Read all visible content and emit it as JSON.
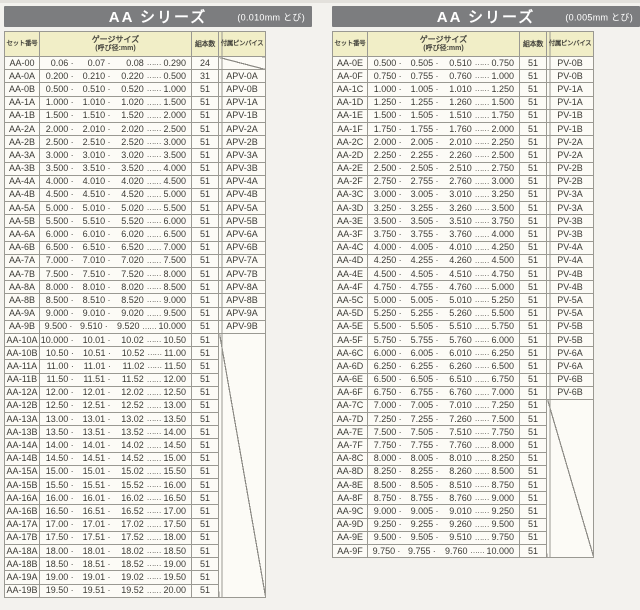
{
  "symbols": {
    "dot": "·",
    "ellipsis": "……"
  },
  "colors": {
    "titlebar_bg": "#7c7d7f",
    "header_bg": "#f1eec7",
    "table_bg": "#fcfbf6",
    "border": "#9a9992"
  },
  "panels": [
    {
      "title": "AA シリーズ",
      "subtitle": "(0.010mm とび)",
      "headers": {
        "set": "セット番号",
        "gauge1": "ゲージサイズ",
        "gauge2": "(呼び径:mm)",
        "count": "組本数",
        "vise": "付属ピンバイス"
      },
      "merge": {
        "start": 21,
        "span": 20
      },
      "rows": [
        {
          "set": "AA-00",
          "g": [
            "0.06",
            "0.07",
            "0.08",
            "0.290"
          ],
          "n": "24",
          "v": ""
        },
        {
          "set": "AA-0A",
          "g": [
            "0.200",
            "0.210",
            "0.220",
            "0.500"
          ],
          "n": "31",
          "v": "APV-0A"
        },
        {
          "set": "AA-0B",
          "g": [
            "0.500",
            "0.510",
            "0.520",
            "1.000"
          ],
          "n": "51",
          "v": "APV-0B"
        },
        {
          "set": "AA-1A",
          "g": [
            "1.000",
            "1.010",
            "1.020",
            "1.500"
          ],
          "n": "51",
          "v": "APV-1A"
        },
        {
          "set": "AA-1B",
          "g": [
            "1.500",
            "1.510",
            "1.520",
            "2.000"
          ],
          "n": "51",
          "v": "APV-1B"
        },
        {
          "set": "AA-2A",
          "g": [
            "2.000",
            "2.010",
            "2.020",
            "2.500"
          ],
          "n": "51",
          "v": "APV-2A"
        },
        {
          "set": "AA-2B",
          "g": [
            "2.500",
            "2.510",
            "2.520",
            "3.000"
          ],
          "n": "51",
          "v": "APV-2B"
        },
        {
          "set": "AA-3A",
          "g": [
            "3.000",
            "3.010",
            "3.020",
            "3.500"
          ],
          "n": "51",
          "v": "APV-3A"
        },
        {
          "set": "AA-3B",
          "g": [
            "3.500",
            "3.510",
            "3.520",
            "4.000"
          ],
          "n": "51",
          "v": "APV-3B"
        },
        {
          "set": "AA-4A",
          "g": [
            "4.000",
            "4.010",
            "4.020",
            "4.500"
          ],
          "n": "51",
          "v": "APV-4A"
        },
        {
          "set": "AA-4B",
          "g": [
            "4.500",
            "4.510",
            "4.520",
            "5.000"
          ],
          "n": "51",
          "v": "APV-4B"
        },
        {
          "set": "AA-5A",
          "g": [
            "5.000",
            "5.010",
            "5.020",
            "5.500"
          ],
          "n": "51",
          "v": "APV-5A"
        },
        {
          "set": "AA-5B",
          "g": [
            "5.500",
            "5.510",
            "5.520",
            "6.000"
          ],
          "n": "51",
          "v": "APV-5B"
        },
        {
          "set": "AA-6A",
          "g": [
            "6.000",
            "6.010",
            "6.020",
            "6.500"
          ],
          "n": "51",
          "v": "APV-6A"
        },
        {
          "set": "AA-6B",
          "g": [
            "6.500",
            "6.510",
            "6.520",
            "7.000"
          ],
          "n": "51",
          "v": "APV-6B"
        },
        {
          "set": "AA-7A",
          "g": [
            "7.000",
            "7.010",
            "7.020",
            "7.500"
          ],
          "n": "51",
          "v": "APV-7A"
        },
        {
          "set": "AA-7B",
          "g": [
            "7.500",
            "7.510",
            "7.520",
            "8.000"
          ],
          "n": "51",
          "v": "APV-7B"
        },
        {
          "set": "AA-8A",
          "g": [
            "8.000",
            "8.010",
            "8.020",
            "8.500"
          ],
          "n": "51",
          "v": "APV-8A"
        },
        {
          "set": "AA-8B",
          "g": [
            "8.500",
            "8.510",
            "8.520",
            "9.000"
          ],
          "n": "51",
          "v": "APV-8B"
        },
        {
          "set": "AA-9A",
          "g": [
            "9.000",
            "9.010",
            "9.020",
            "9.500"
          ],
          "n": "51",
          "v": "APV-9A"
        },
        {
          "set": "AA-9B",
          "g": [
            "9.500",
            "9.510",
            "9.520",
            "10.000"
          ],
          "n": "51",
          "v": "APV-9B"
        },
        {
          "set": "AA-10A",
          "g": [
            "10.000",
            "10.01",
            "10.02",
            "10.50"
          ],
          "n": "51",
          "v": null
        },
        {
          "set": "AA-10B",
          "g": [
            "10.50",
            "10.51",
            "10.52",
            "11.00"
          ],
          "n": "51",
          "v": null
        },
        {
          "set": "AA-11A",
          "g": [
            "11.00",
            "11.01",
            "11.02",
            "11.50"
          ],
          "n": "51",
          "v": null
        },
        {
          "set": "AA-11B",
          "g": [
            "11.50",
            "11.51",
            "11.52",
            "12.00"
          ],
          "n": "51",
          "v": null
        },
        {
          "set": "AA-12A",
          "g": [
            "12.00",
            "12.01",
            "12.02",
            "12.50"
          ],
          "n": "51",
          "v": null
        },
        {
          "set": "AA-12B",
          "g": [
            "12.50",
            "12.51",
            "12.52",
            "13.00"
          ],
          "n": "51",
          "v": null
        },
        {
          "set": "AA-13A",
          "g": [
            "13.00",
            "13.01",
            "13.02",
            "13.50"
          ],
          "n": "51",
          "v": null
        },
        {
          "set": "AA-13B",
          "g": [
            "13.50",
            "13.51",
            "13.52",
            "14.00"
          ],
          "n": "51",
          "v": null
        },
        {
          "set": "AA-14A",
          "g": [
            "14.00",
            "14.01",
            "14.02",
            "14.50"
          ],
          "n": "51",
          "v": null
        },
        {
          "set": "AA-14B",
          "g": [
            "14.50",
            "14.51",
            "14.52",
            "15.00"
          ],
          "n": "51",
          "v": null
        },
        {
          "set": "AA-15A",
          "g": [
            "15.00",
            "15.01",
            "15.02",
            "15.50"
          ],
          "n": "51",
          "v": null
        },
        {
          "set": "AA-15B",
          "g": [
            "15.50",
            "15.51",
            "15.52",
            "16.00"
          ],
          "n": "51",
          "v": null
        },
        {
          "set": "AA-16A",
          "g": [
            "16.00",
            "16.01",
            "16.02",
            "16.50"
          ],
          "n": "51",
          "v": null
        },
        {
          "set": "AA-16B",
          "g": [
            "16.50",
            "16.51",
            "16.52",
            "17.00"
          ],
          "n": "51",
          "v": null
        },
        {
          "set": "AA-17A",
          "g": [
            "17.00",
            "17.01",
            "17.02",
            "17.50"
          ],
          "n": "51",
          "v": null
        },
        {
          "set": "AA-17B",
          "g": [
            "17.50",
            "17.51",
            "17.52",
            "18.00"
          ],
          "n": "51",
          "v": null
        },
        {
          "set": "AA-18A",
          "g": [
            "18.00",
            "18.01",
            "18.02",
            "18.50"
          ],
          "n": "51",
          "v": null
        },
        {
          "set": "AA-18B",
          "g": [
            "18.50",
            "18.51",
            "18.52",
            "19.00"
          ],
          "n": "51",
          "v": null
        },
        {
          "set": "AA-19A",
          "g": [
            "19.00",
            "19.01",
            "19.02",
            "19.50"
          ],
          "n": "51",
          "v": null
        },
        {
          "set": "AA-19B",
          "g": [
            "19.50",
            "19.51",
            "19.52",
            "20.00"
          ],
          "n": "51",
          "v": null
        }
      ]
    },
    {
      "title": "AA シリーズ",
      "subtitle": "(0.005mm とび)",
      "headers": {
        "set": "セット番号",
        "gauge1": "ゲージサイズ",
        "gauge2": "(呼び径:mm)",
        "count": "組本数",
        "vise": "付属ピンバイス"
      },
      "merge": {
        "start": 26,
        "span": 12
      },
      "rows": [
        {
          "set": "AA-0E",
          "g": [
            "0.500",
            "0.505",
            "0.510",
            "0.750"
          ],
          "n": "51",
          "v": "PV-0B"
        },
        {
          "set": "AA-0F",
          "g": [
            "0.750",
            "0.755",
            "0.760",
            "1.000"
          ],
          "n": "51",
          "v": "PV-0B"
        },
        {
          "set": "AA-1C",
          "g": [
            "1.000",
            "1.005",
            "1.010",
            "1.250"
          ],
          "n": "51",
          "v": "PV-1A"
        },
        {
          "set": "AA-1D",
          "g": [
            "1.250",
            "1.255",
            "1.260",
            "1.500"
          ],
          "n": "51",
          "v": "PV-1A"
        },
        {
          "set": "AA-1E",
          "g": [
            "1.500",
            "1.505",
            "1.510",
            "1.750"
          ],
          "n": "51",
          "v": "PV-1B"
        },
        {
          "set": "AA-1F",
          "g": [
            "1.750",
            "1.755",
            "1.760",
            "2.000"
          ],
          "n": "51",
          "v": "PV-1B"
        },
        {
          "set": "AA-2C",
          "g": [
            "2.000",
            "2.005",
            "2.010",
            "2.250"
          ],
          "n": "51",
          "v": "PV-2A"
        },
        {
          "set": "AA-2D",
          "g": [
            "2.250",
            "2.255",
            "2.260",
            "2.500"
          ],
          "n": "51",
          "v": "PV-2A"
        },
        {
          "set": "AA-2E",
          "g": [
            "2.500",
            "2.505",
            "2.510",
            "2.750"
          ],
          "n": "51",
          "v": "PV-2B"
        },
        {
          "set": "AA-2F",
          "g": [
            "2.750",
            "2.755",
            "2.760",
            "3.000"
          ],
          "n": "51",
          "v": "PV-2B"
        },
        {
          "set": "AA-3C",
          "g": [
            "3.000",
            "3.005",
            "3.010",
            "3.250"
          ],
          "n": "51",
          "v": "PV-3A"
        },
        {
          "set": "AA-3D",
          "g": [
            "3.250",
            "3.255",
            "3.260",
            "3.500"
          ],
          "n": "51",
          "v": "PV-3A"
        },
        {
          "set": "AA-3E",
          "g": [
            "3.500",
            "3.505",
            "3.510",
            "3.750"
          ],
          "n": "51",
          "v": "PV-3B"
        },
        {
          "set": "AA-3F",
          "g": [
            "3.750",
            "3.755",
            "3.760",
            "4.000"
          ],
          "n": "51",
          "v": "PV-3B"
        },
        {
          "set": "AA-4C",
          "g": [
            "4.000",
            "4.005",
            "4.010",
            "4.250"
          ],
          "n": "51",
          "v": "PV-4A"
        },
        {
          "set": "AA-4D",
          "g": [
            "4.250",
            "4.255",
            "4.260",
            "4.500"
          ],
          "n": "51",
          "v": "PV-4A"
        },
        {
          "set": "AA-4E",
          "g": [
            "4.500",
            "4.505",
            "4.510",
            "4.750"
          ],
          "n": "51",
          "v": "PV-4B"
        },
        {
          "set": "AA-4F",
          "g": [
            "4.750",
            "4.755",
            "4.760",
            "5.000"
          ],
          "n": "51",
          "v": "PV-4B"
        },
        {
          "set": "AA-5C",
          "g": [
            "5.000",
            "5.005",
            "5.010",
            "5.250"
          ],
          "n": "51",
          "v": "PV-5A"
        },
        {
          "set": "AA-5D",
          "g": [
            "5.250",
            "5.255",
            "5.260",
            "5.500"
          ],
          "n": "51",
          "v": "PV-5A"
        },
        {
          "set": "AA-5E",
          "g": [
            "5.500",
            "5.505",
            "5.510",
            "5.750"
          ],
          "n": "51",
          "v": "PV-5B"
        },
        {
          "set": "AA-5F",
          "g": [
            "5.750",
            "5.755",
            "5.760",
            "6.000"
          ],
          "n": "51",
          "v": "PV-5B"
        },
        {
          "set": "AA-6C",
          "g": [
            "6.000",
            "6.005",
            "6.010",
            "6.250"
          ],
          "n": "51",
          "v": "PV-6A"
        },
        {
          "set": "AA-6D",
          "g": [
            "6.250",
            "6.255",
            "6.260",
            "6.500"
          ],
          "n": "51",
          "v": "PV-6A"
        },
        {
          "set": "AA-6E",
          "g": [
            "6.500",
            "6.505",
            "6.510",
            "6.750"
          ],
          "n": "51",
          "v": "PV-6B"
        },
        {
          "set": "AA-6F",
          "g": [
            "6.750",
            "6.755",
            "6.760",
            "7.000"
          ],
          "n": "51",
          "v": "PV-6B"
        },
        {
          "set": "AA-7C",
          "g": [
            "7.000",
            "7.005",
            "7.010",
            "7.250"
          ],
          "n": "51",
          "v": null
        },
        {
          "set": "AA-7D",
          "g": [
            "7.250",
            "7.255",
            "7.260",
            "7.500"
          ],
          "n": "51",
          "v": null
        },
        {
          "set": "AA-7E",
          "g": [
            "7.500",
            "7.505",
            "7.510",
            "7.750"
          ],
          "n": "51",
          "v": null
        },
        {
          "set": "AA-7F",
          "g": [
            "7.750",
            "7.755",
            "7.760",
            "8.000"
          ],
          "n": "51",
          "v": null
        },
        {
          "set": "AA-8C",
          "g": [
            "8.000",
            "8.005",
            "8.010",
            "8.250"
          ],
          "n": "51",
          "v": null
        },
        {
          "set": "AA-8D",
          "g": [
            "8.250",
            "8.255",
            "8.260",
            "8.500"
          ],
          "n": "51",
          "v": null
        },
        {
          "set": "AA-8E",
          "g": [
            "8.500",
            "8.505",
            "8.510",
            "8.750"
          ],
          "n": "51",
          "v": null
        },
        {
          "set": "AA-8F",
          "g": [
            "8.750",
            "8.755",
            "8.760",
            "9.000"
          ],
          "n": "51",
          "v": null
        },
        {
          "set": "AA-9C",
          "g": [
            "9.000",
            "9.005",
            "9.010",
            "9.250"
          ],
          "n": "51",
          "v": null
        },
        {
          "set": "AA-9D",
          "g": [
            "9.250",
            "9.255",
            "9.260",
            "9.500"
          ],
          "n": "51",
          "v": null
        },
        {
          "set": "AA-9E",
          "g": [
            "9.500",
            "9.505",
            "9.510",
            "9.750"
          ],
          "n": "51",
          "v": null
        },
        {
          "set": "AA-9F",
          "g": [
            "9.750",
            "9.755",
            "9.760",
            "10.000"
          ],
          "n": "51",
          "v": null
        }
      ]
    }
  ]
}
